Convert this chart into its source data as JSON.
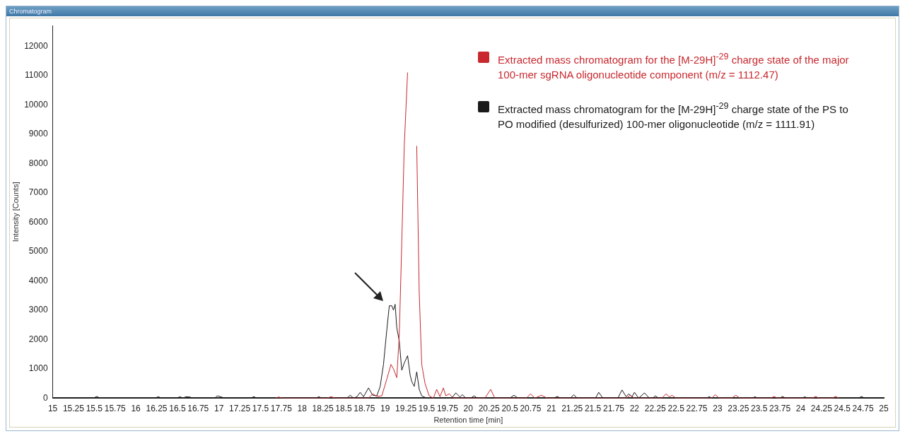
{
  "chart_data": {
    "type": "line",
    "title": "Chromatogram",
    "xlabel": "Retention time [min]",
    "ylabel": "Intensity [Counts]",
    "xlim": [
      15,
      25
    ],
    "xticks": [
      15,
      15.25,
      15.5,
      15.75,
      16,
      16.25,
      16.5,
      16.75,
      17,
      17.25,
      17.5,
      17.75,
      18,
      18.25,
      18.5,
      18.75,
      19,
      19.25,
      19.5,
      19.75,
      20,
      20.25,
      20.5,
      20.75,
      21,
      21.25,
      21.5,
      21.75,
      22,
      22.25,
      22.5,
      22.75,
      23,
      23.25,
      23.5,
      23.75,
      24,
      24.25,
      24.5,
      24.75,
      25
    ],
    "ylim": [
      0,
      12700
    ],
    "yticks": [
      0,
      1000,
      2000,
      3000,
      4000,
      5000,
      6000,
      7000,
      8000,
      9000,
      10000,
      11000,
      12000
    ],
    "grid": false,
    "legend": "top right",
    "marker": "none",
    "line_style": "solid",
    "series": [
      {
        "name": "Extracted mass chromatogram for the [M-29H]$^{-29}$ charge state of the major 100-mer sgRNA oligonucleotide component (m/z = 1112.47)",
        "color": "#c8282e",
        "x": [
          17.68,
          17.72,
          17.76,
          18.3,
          18.35,
          18.4,
          18.8,
          18.85,
          18.9,
          18.96,
          19.02,
          19.07,
          19.1,
          19.14,
          19.17,
          19.2,
          19.23,
          19.27,
          19.3,
          19.36,
          19.38,
          19.41,
          19.44,
          19.48,
          19.53,
          19.58,
          19.62,
          19.66,
          19.7,
          19.73,
          19.77,
          19.82,
          20.2,
          20.27,
          20.32,
          20.7,
          20.75,
          20.8,
          20.88,
          20.95,
          21.9,
          21.95,
          22.0,
          22.33,
          22.38,
          22.42,
          22.45,
          22.5,
          22.93,
          22.97,
          23.02,
          23.17,
          23.22,
          23.27,
          23.64,
          23.68,
          23.72,
          24.14,
          24.18,
          24.22,
          24.38,
          24.42,
          24.46
        ],
        "values": [
          0,
          40,
          0,
          0,
          50,
          0,
          0,
          150,
          60,
          80,
          650,
          1150,
          1000,
          700,
          2150,
          5300,
          8600,
          11100,
          null,
          null,
          8600,
          3600,
          1150,
          500,
          80,
          0,
          300,
          50,
          350,
          80,
          150,
          0,
          0,
          300,
          0,
          0,
          150,
          0,
          100,
          0,
          0,
          100,
          0,
          0,
          150,
          40,
          100,
          0,
          0,
          120,
          0,
          0,
          100,
          0,
          0,
          60,
          0,
          0,
          60,
          0,
          0,
          60,
          0
        ]
      },
      {
        "name": "Extracted mass chromatogram for the [M-29H]$^{-29}$ charge state of the PS to PO modified (desulfurized) 100-mer oligonucleotide (m/z = 1111.91)",
        "color": "#1a1a1a",
        "x": [
          15,
          15.49,
          15.53,
          15.57,
          16.23,
          16.27,
          16.31,
          16.49,
          16.53,
          16.57,
          16.6,
          16.65,
          16.69,
          16.95,
          16.98,
          17.03,
          17.07,
          17.38,
          17.42,
          17.46,
          18.17,
          18.2,
          18.24,
          18.54,
          18.58,
          18.62,
          18.66,
          18.7,
          18.74,
          18.8,
          18.85,
          18.9,
          18.94,
          18.98,
          19.02,
          19.05,
          19.08,
          19.1,
          19.12,
          19.14,
          19.17,
          19.2,
          19.23,
          19.27,
          19.3,
          19.32,
          19.35,
          19.38,
          19.41,
          19.44,
          19.5,
          19.8,
          19.85,
          19.9,
          19.93,
          19.97,
          20.03,
          20.07,
          20.11,
          20.5,
          20.55,
          20.6,
          21.03,
          21.07,
          21.11,
          21.23,
          21.27,
          21.31,
          21.53,
          21.57,
          21.62,
          21.8,
          21.85,
          21.9,
          21.93,
          21.97,
          22.0,
          22.05,
          22.12,
          22.18,
          22.22,
          22.25,
          22.29,
          22.87,
          22.9,
          22.93,
          23.42,
          23.45,
          23.48,
          23.75,
          23.78,
          23.82,
          24.02,
          24.05,
          24.08,
          24.7,
          24.73,
          24.77,
          25
        ],
        "values": [
          0,
          0,
          60,
          0,
          0,
          50,
          0,
          0,
          50,
          0,
          50,
          40,
          0,
          0,
          80,
          40,
          0,
          0,
          50,
          0,
          0,
          50,
          0,
          0,
          100,
          0,
          50,
          200,
          50,
          350,
          100,
          80,
          400,
          1150,
          2330,
          3150,
          3150,
          3000,
          3200,
          2400,
          1950,
          950,
          1200,
          1450,
          800,
          570,
          400,
          900,
          300,
          80,
          0,
          0,
          180,
          40,
          120,
          0,
          0,
          80,
          0,
          0,
          100,
          0,
          0,
          60,
          0,
          0,
          120,
          0,
          0,
          200,
          0,
          0,
          280,
          50,
          150,
          50,
          200,
          0,
          180,
          0,
          0,
          80,
          0,
          0,
          50,
          0,
          0,
          50,
          0,
          0,
          60,
          0,
          0,
          50,
          0,
          0,
          60,
          0,
          0
        ]
      }
    ]
  }
}
